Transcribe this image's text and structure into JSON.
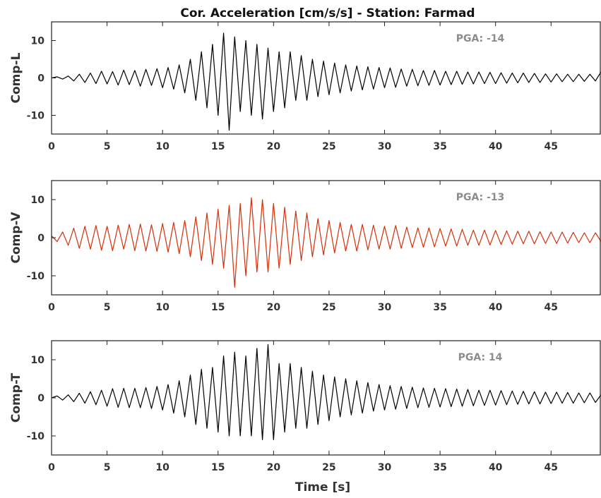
{
  "title": "Cor. Acceleration  [cm/s/s] - Station: Farmad",
  "colors": {
    "axis": "#222222",
    "text": "#333333",
    "pga_text": "#8c8c8c"
  },
  "chart_data": [
    {
      "type": "line",
      "ylabel": "Comp-L",
      "xlabel": "",
      "annotation": "PGA: -14",
      "color": "#000000",
      "xlim": [
        0,
        49.5
      ],
      "ylim": [
        -15,
        15
      ],
      "xticks": [
        0,
        5,
        10,
        15,
        20,
        25,
        30,
        35,
        40,
        45
      ],
      "yticks": [
        -10,
        0,
        10
      ],
      "x": [
        0,
        0.5,
        1,
        1.5,
        2,
        2.5,
        3,
        3.5,
        4,
        4.5,
        5,
        5.5,
        6,
        6.5,
        7,
        7.5,
        8,
        8.5,
        9,
        9.5,
        10,
        10.5,
        11,
        11.5,
        12,
        12.5,
        13,
        13.5,
        14,
        14.5,
        15,
        15.5,
        16,
        16.5,
        17,
        17.5,
        18,
        18.5,
        19,
        19.5,
        20,
        20.5,
        21,
        21.5,
        22,
        22.5,
        23,
        23.5,
        24,
        24.5,
        25,
        25.5,
        26,
        26.5,
        27,
        27.5,
        28,
        28.5,
        29,
        29.5,
        30,
        30.5,
        31,
        31.5,
        32,
        32.5,
        33,
        33.5,
        34,
        34.5,
        35,
        35.5,
        36,
        36.5,
        37,
        37.5,
        38,
        38.5,
        39,
        39.5,
        40,
        40.5,
        41,
        41.5,
        42,
        42.5,
        43,
        43.5,
        44,
        44.5,
        45,
        45.5,
        46,
        46.5,
        47,
        47.5,
        48,
        48.5,
        49,
        49.5
      ],
      "y": [
        0,
        0.3,
        -0.3,
        0.5,
        -0.8,
        1,
        -1.2,
        1.3,
        -1.5,
        1.8,
        -1.6,
        1.7,
        -1.9,
        2.1,
        -1.8,
        2,
        -2.2,
        2.3,
        -2,
        2.5,
        -2.6,
        2.8,
        -3,
        3.5,
        -4,
        5,
        -6,
        7,
        -8,
        9,
        -10,
        12,
        -14,
        11,
        -9,
        10,
        -10,
        9,
        -11,
        8,
        -9,
        7,
        -8,
        7,
        -6,
        6,
        -6,
        5,
        -5,
        4.5,
        -4.5,
        4,
        -4,
        3.5,
        -3.5,
        3.2,
        -3.2,
        3,
        -3,
        2.8,
        -2.6,
        2.7,
        -2.5,
        2.4,
        -2.2,
        2.3,
        -2.1,
        2,
        -2,
        2,
        -1.9,
        1.8,
        -1.8,
        1.8,
        -1.7,
        1.6,
        -1.6,
        1.6,
        -1.5,
        1.5,
        -1.5,
        1.4,
        -1.4,
        1.3,
        -1.3,
        1.3,
        -1.2,
        1.2,
        -1.2,
        1.1,
        -1.1,
        1.1,
        -1,
        1,
        -1,
        1,
        -0.9,
        1,
        -0.8,
        1.6
      ]
    },
    {
      "type": "line",
      "ylabel": "Comp-V",
      "xlabel": "",
      "annotation": "PGA: -13",
      "color": "#d82e08",
      "xlim": [
        0,
        49.5
      ],
      "ylim": [
        -15,
        15
      ],
      "xticks": [
        0,
        5,
        10,
        15,
        20,
        25,
        30,
        35,
        40,
        45
      ],
      "yticks": [
        -10,
        0,
        10
      ],
      "x": [
        0,
        0.5,
        1,
        1.5,
        2,
        2.5,
        3,
        3.5,
        4,
        4.5,
        5,
        5.5,
        6,
        6.5,
        7,
        7.5,
        8,
        8.5,
        9,
        9.5,
        10,
        10.5,
        11,
        11.5,
        12,
        12.5,
        13,
        13.5,
        14,
        14.5,
        15,
        15.5,
        16,
        16.5,
        17,
        17.5,
        18,
        18.5,
        19,
        19.5,
        20,
        20.5,
        21,
        21.5,
        22,
        22.5,
        23,
        23.5,
        24,
        24.5,
        25,
        25.5,
        26,
        26.5,
        27,
        27.5,
        28,
        28.5,
        29,
        29.5,
        30,
        30.5,
        31,
        31.5,
        32,
        32.5,
        33,
        33.5,
        34,
        34.5,
        35,
        35.5,
        36,
        36.5,
        37,
        37.5,
        38,
        38.5,
        39,
        39.5,
        40,
        40.5,
        41,
        41.5,
        42,
        42.5,
        43,
        43.5,
        44,
        44.5,
        45,
        45.5,
        46,
        46.5,
        47,
        47.5,
        48,
        48.5,
        49,
        49.5
      ],
      "y": [
        0.5,
        -1,
        1.5,
        -2,
        2.5,
        -2.8,
        3,
        -3,
        3.2,
        -3.3,
        3,
        -3.4,
        3.3,
        -3,
        3.5,
        -3.4,
        3.6,
        -3.5,
        3.4,
        -3.6,
        3.7,
        -3.8,
        4,
        -4.2,
        4.5,
        -5,
        5.5,
        -6,
        6.5,
        -7,
        7.5,
        -8,
        8.5,
        -13,
        9,
        -10,
        10.5,
        -9,
        10,
        -9,
        9,
        -8,
        8,
        -7,
        7,
        -6,
        6.5,
        -5,
        5,
        -4.5,
        4.5,
        -4,
        4,
        -3.5,
        3.5,
        -3.5,
        3.5,
        -3.2,
        3.3,
        -3,
        3,
        -3,
        3.2,
        -2.8,
        2.8,
        -2.6,
        2.6,
        -2.5,
        2.6,
        -2.4,
        2.4,
        -2.2,
        2.3,
        -2.2,
        2.2,
        -2,
        2,
        -2,
        2,
        -1.9,
        1.9,
        -1.8,
        1.8,
        -1.7,
        1.7,
        -1.6,
        1.7,
        -1.6,
        1.6,
        -1.5,
        1.5,
        -1.5,
        1.5,
        -1.4,
        1.4,
        -1.3,
        1.3,
        -1.3,
        1.3,
        -1
      ]
    },
    {
      "type": "line",
      "ylabel": "Comp-T",
      "xlabel": "Time [s]",
      "annotation": "PGA: 14",
      "color": "#000000",
      "xlim": [
        0,
        49.5
      ],
      "ylim": [
        -15,
        15
      ],
      "xticks": [
        0,
        5,
        10,
        15,
        20,
        25,
        30,
        35,
        40,
        45
      ],
      "yticks": [
        -10,
        0,
        10
      ],
      "x": [
        0,
        0.5,
        1,
        1.5,
        2,
        2.5,
        3,
        3.5,
        4,
        4.5,
        5,
        5.5,
        6,
        6.5,
        7,
        7.5,
        8,
        8.5,
        9,
        9.5,
        10,
        10.5,
        11,
        11.5,
        12,
        12.5,
        13,
        13.5,
        14,
        14.5,
        15,
        15.5,
        16,
        16.5,
        17,
        17.5,
        18,
        18.5,
        19,
        19.5,
        20,
        20.5,
        21,
        21.5,
        22,
        22.5,
        23,
        23.5,
        24,
        24.5,
        25,
        25.5,
        26,
        26.5,
        27,
        27.5,
        28,
        28.5,
        29,
        29.5,
        30,
        30.5,
        31,
        31.5,
        32,
        32.5,
        33,
        33.5,
        34,
        34.5,
        35,
        35.5,
        36,
        36.5,
        37,
        37.5,
        38,
        38.5,
        39,
        39.5,
        40,
        40.5,
        41,
        41.5,
        42,
        42.5,
        43,
        43.5,
        44,
        44.5,
        45,
        45.5,
        46,
        46.5,
        47,
        47.5,
        48,
        48.5,
        49,
        49.5
      ],
      "y": [
        0,
        0.5,
        -0.6,
        0.8,
        -1,
        1.2,
        -1.4,
        1.6,
        -1.8,
        2,
        -2.2,
        2.4,
        -2.5,
        2.5,
        -2.6,
        2.5,
        -2.6,
        2.7,
        -2.8,
        3,
        -3.2,
        3.5,
        -4,
        4.5,
        -5,
        6,
        -7,
        7.5,
        -8,
        8,
        -9,
        11,
        -10,
        12,
        -10,
        11,
        -10,
        13,
        -11,
        14,
        -11,
        9,
        -9,
        9,
        -8,
        8,
        -8,
        7,
        -7,
        6,
        -6,
        5.5,
        -5,
        5,
        -4.5,
        4.5,
        -4,
        4,
        -3.5,
        3.5,
        -3.2,
        3.2,
        -3,
        3,
        -2.8,
        2.8,
        -2.6,
        2.6,
        -2.5,
        2.5,
        -2.4,
        2.4,
        -2.3,
        2.3,
        -2.2,
        2.2,
        -2.1,
        2,
        -2,
        2,
        -1.9,
        1.9,
        -1.8,
        1.8,
        -1.7,
        1.7,
        -1.6,
        1.6,
        -1.6,
        1.5,
        -1.5,
        1.5,
        -1.4,
        1.4,
        -1.4,
        1.3,
        -1.3,
        1.3,
        -1.2,
        0.8
      ]
    }
  ]
}
